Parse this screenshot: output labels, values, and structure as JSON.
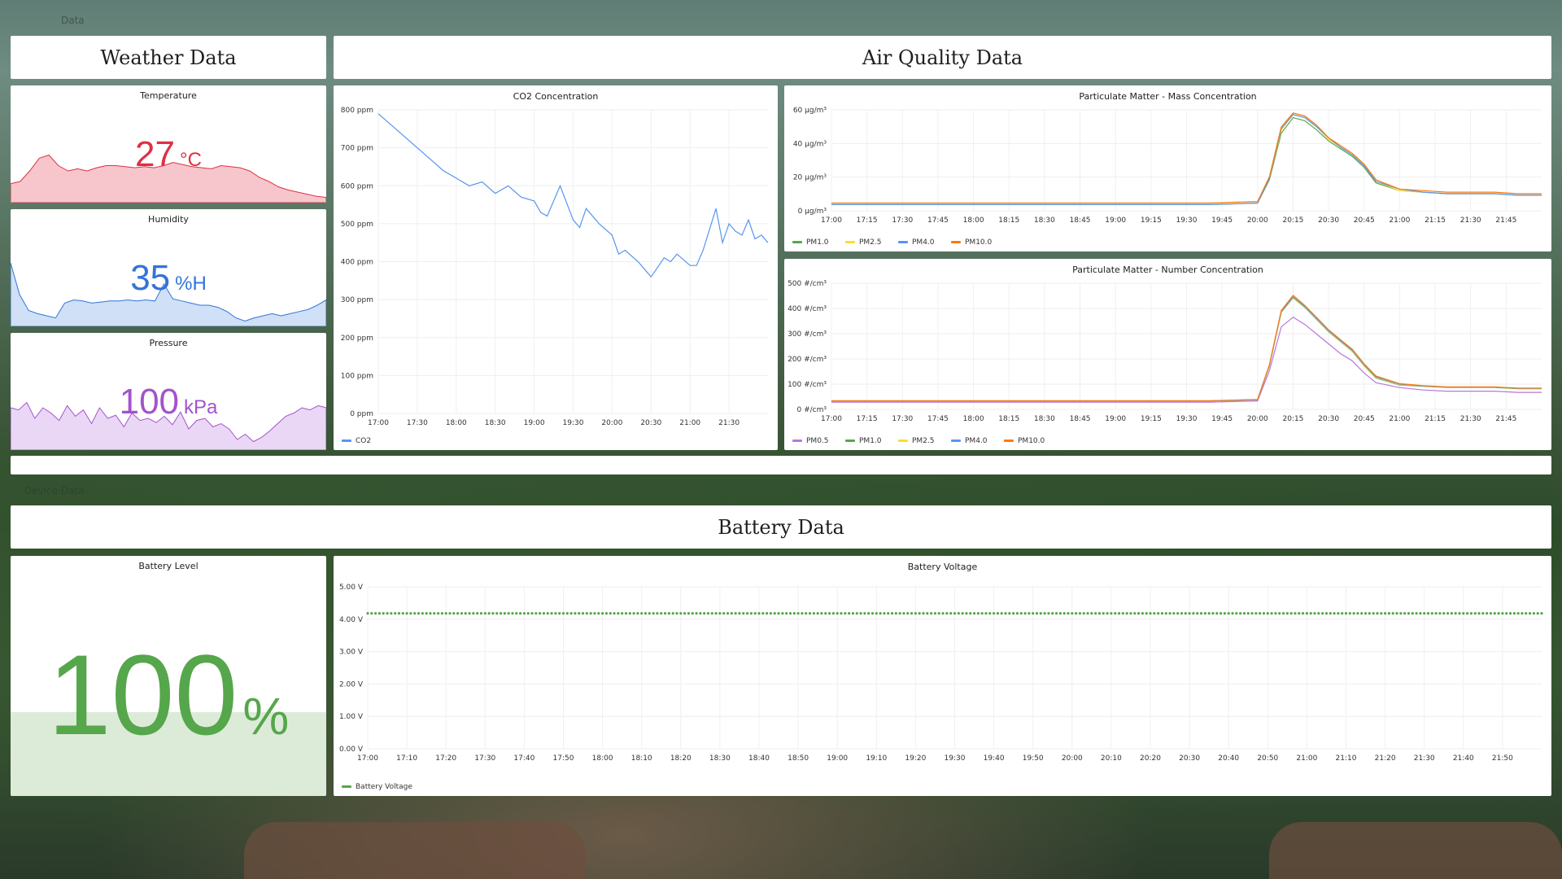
{
  "row_titles": {
    "top": "Data",
    "device": "Device Data"
  },
  "colors": {
    "temperature": "#e02f44",
    "temperature_fill": "#f7c6cd",
    "humidity": "#3274d9",
    "humidity_fill": "#cfe0f7",
    "pressure": "#a352cc",
    "pressure_fill": "#ead7f5",
    "co2": "#5794f2",
    "battery": "#56a64b",
    "battery_fill": "#dcebd8",
    "pm0_5": "#b877d9",
    "pm1_0": "#56a64b",
    "pm2_5": "#fade2a",
    "pm4_0": "#5794f2",
    "pm10_0": "#ff780a"
  },
  "weather": {
    "banner": "Weather Data",
    "temperature": {
      "title": "Temperature",
      "value": "27",
      "unit": "°C"
    },
    "humidity": {
      "title": "Humidity",
      "value": "35",
      "unit": "%H"
    },
    "pressure": {
      "title": "Pressure",
      "value": "100",
      "unit": "kPa"
    }
  },
  "air": {
    "banner": "Air Quality Data"
  },
  "battery": {
    "banner": "Battery Data",
    "level": {
      "title": "Battery Level",
      "value": "100",
      "unit": "%",
      "fill": 1.0
    }
  },
  "chart_data": [
    {
      "id": "co2",
      "type": "line",
      "title": "CO2 Concentration",
      "x_ticks": [
        "17:00",
        "17:30",
        "18:00",
        "18:30",
        "19:00",
        "19:30",
        "20:00",
        "20:30",
        "21:00",
        "21:30"
      ],
      "y_ticks": [
        "0 ppm",
        "100 ppm",
        "200 ppm",
        "300 ppm",
        "400 ppm",
        "500 ppm",
        "600 ppm",
        "700 ppm",
        "800 ppm"
      ],
      "ylim": [
        0,
        800
      ],
      "x_minutes_range": [
        0,
        300
      ],
      "series": [
        {
          "name": "CO2",
          "color_key": "co2",
          "x": [
            0,
            10,
            20,
            30,
            40,
            50,
            60,
            70,
            80,
            90,
            100,
            110,
            120,
            125,
            130,
            140,
            150,
            155,
            160,
            170,
            180,
            185,
            190,
            200,
            205,
            210,
            220,
            225,
            230,
            240,
            245,
            250,
            260,
            265,
            270,
            275,
            280,
            285,
            290,
            295,
            300
          ],
          "values": [
            790,
            760,
            730,
            700,
            670,
            640,
            620,
            600,
            610,
            580,
            600,
            570,
            560,
            530,
            520,
            600,
            510,
            490,
            540,
            500,
            470,
            420,
            430,
            400,
            380,
            360,
            410,
            400,
            420,
            390,
            390,
            430,
            540,
            450,
            500,
            480,
            470,
            510,
            460,
            470,
            450
          ]
        }
      ]
    },
    {
      "id": "pm_mass",
      "type": "line",
      "title": "Particulate Matter - Mass Concentration",
      "x_ticks": [
        "17:00",
        "17:15",
        "17:30",
        "17:45",
        "18:00",
        "18:15",
        "18:30",
        "18:45",
        "19:00",
        "19:15",
        "19:30",
        "19:45",
        "20:00",
        "20:15",
        "20:30",
        "20:45",
        "21:00",
        "21:15",
        "21:30",
        "21:45"
      ],
      "y_ticks": [
        "0 µg/m³",
        "20 µg/m³",
        "40 µg/m³",
        "60 µg/m³"
      ],
      "ylim": [
        0,
        65
      ],
      "x_minutes_range": [
        0,
        300
      ],
      "x": [
        0,
        40,
        80,
        120,
        160,
        180,
        185,
        190,
        195,
        200,
        205,
        210,
        215,
        220,
        225,
        230,
        240,
        250,
        260,
        270,
        280,
        290,
        300
      ],
      "series": [
        {
          "name": "PM1.0",
          "color_key": "pm1_0",
          "values": [
            4,
            4,
            4,
            4,
            4,
            5,
            20,
            50,
            60,
            58,
            52,
            45,
            40,
            35,
            28,
            18,
            13,
            12,
            11,
            11,
            11,
            10,
            10
          ]
        },
        {
          "name": "PM2.5",
          "color_key": "pm2_5",
          "values": [
            4,
            4,
            4,
            4,
            4,
            5,
            21,
            52,
            62,
            60,
            54,
            46,
            41,
            36,
            29,
            19,
            13,
            12,
            11,
            11,
            11,
            10,
            10
          ]
        },
        {
          "name": "PM4.0",
          "color_key": "pm4_0",
          "values": [
            4,
            4,
            4,
            4,
            4,
            5,
            21,
            53,
            62,
            60,
            54,
            47,
            41,
            36,
            29,
            19,
            14,
            12,
            11,
            11,
            11,
            10,
            10
          ]
        },
        {
          "name": "PM10.0",
          "color_key": "pm10_0",
          "values": [
            5,
            5,
            5,
            5,
            5,
            6,
            22,
            54,
            63,
            61,
            55,
            47,
            42,
            37,
            30,
            20,
            14,
            13,
            12,
            12,
            12,
            11,
            11
          ]
        }
      ]
    },
    {
      "id": "pm_number",
      "type": "line",
      "title": "Particulate Matter - Number Concentration",
      "x_ticks": [
        "17:00",
        "17:15",
        "17:30",
        "17:45",
        "18:00",
        "18:15",
        "18:30",
        "18:45",
        "19:00",
        "19:15",
        "19:30",
        "19:45",
        "20:00",
        "20:15",
        "20:30",
        "20:45",
        "21:00",
        "21:15",
        "21:30",
        "21:45"
      ],
      "y_ticks": [
        "0 #/cm³",
        "100 #/cm³",
        "200 #/cm³",
        "300 #/cm³",
        "400 #/cm³",
        "500 #/cm³"
      ],
      "ylim": [
        0,
        520
      ],
      "x_minutes_range": [
        0,
        300
      ],
      "x": [
        0,
        40,
        80,
        120,
        160,
        180,
        185,
        190,
        195,
        200,
        205,
        210,
        215,
        220,
        225,
        230,
        240,
        250,
        260,
        270,
        280,
        290,
        300
      ],
      "series": [
        {
          "name": "PM0.5",
          "color_key": "pm0_5",
          "values": [
            30,
            30,
            30,
            30,
            30,
            35,
            160,
            340,
            380,
            350,
            310,
            270,
            230,
            200,
            150,
            110,
            90,
            80,
            75,
            75,
            75,
            70,
            70
          ]
        },
        {
          "name": "PM1.0",
          "color_key": "pm1_0",
          "values": [
            35,
            35,
            35,
            35,
            35,
            40,
            180,
            400,
            460,
            420,
            370,
            320,
            280,
            240,
            180,
            130,
            100,
            95,
            90,
            90,
            90,
            85,
            85
          ]
        },
        {
          "name": "PM2.5",
          "color_key": "pm2_5",
          "values": [
            35,
            35,
            35,
            35,
            35,
            40,
            182,
            402,
            462,
            422,
            372,
            322,
            282,
            242,
            182,
            132,
            102,
            96,
            91,
            91,
            91,
            86,
            86
          ]
        },
        {
          "name": "PM4.0",
          "color_key": "pm4_0",
          "values": [
            35,
            35,
            35,
            35,
            35,
            40,
            183,
            404,
            464,
            424,
            374,
            324,
            284,
            244,
            184,
            134,
            104,
            97,
            92,
            92,
            92,
            87,
            87
          ]
        },
        {
          "name": "PM10.0",
          "color_key": "pm10_0",
          "values": [
            36,
            36,
            36,
            36,
            36,
            41,
            185,
            408,
            470,
            428,
            378,
            328,
            288,
            248,
            188,
            138,
            106,
            98,
            93,
            93,
            93,
            88,
            88
          ]
        }
      ]
    },
    {
      "id": "battery_voltage",
      "type": "scatter",
      "title": "Battery Voltage",
      "x_ticks": [
        "17:00",
        "17:10",
        "17:20",
        "17:30",
        "17:40",
        "17:50",
        "18:00",
        "18:10",
        "18:20",
        "18:30",
        "18:40",
        "18:50",
        "19:00",
        "19:10",
        "19:20",
        "19:30",
        "19:40",
        "19:50",
        "20:00",
        "20:10",
        "20:20",
        "20:30",
        "20:40",
        "20:50",
        "21:00",
        "21:10",
        "21:20",
        "21:30",
        "21:40",
        "21:50"
      ],
      "y_ticks": [
        "0.00 V",
        "1.00 V",
        "2.00 V",
        "3.00 V",
        "4.00 V",
        "5.00 V"
      ],
      "ylim": [
        0,
        5
      ],
      "x_minutes_range": [
        0,
        300
      ],
      "series": [
        {
          "name": "Battery Voltage",
          "color_key": "battery",
          "value": 4.18
        }
      ]
    }
  ],
  "sparklines": {
    "temperature": [
      18,
      20,
      30,
      42,
      45,
      35,
      30,
      32,
      30,
      33,
      35,
      35,
      34,
      33,
      34,
      33,
      35,
      38,
      36,
      34,
      33,
      32,
      35,
      34,
      33,
      30,
      24,
      20,
      15,
      12,
      10,
      8,
      6,
      5
    ],
    "humidity": [
      60,
      30,
      15,
      12,
      10,
      8,
      22,
      25,
      24,
      22,
      23,
      24,
      24,
      25,
      24,
      25,
      24,
      40,
      26,
      24,
      22,
      20,
      20,
      18,
      14,
      8,
      5,
      8,
      10,
      12,
      10,
      12,
      14,
      16,
      20,
      25
    ],
    "pressure": [
      40,
      38,
      45,
      30,
      40,
      35,
      28,
      42,
      32,
      38,
      25,
      40,
      30,
      33,
      22,
      35,
      28,
      30,
      26,
      32,
      24,
      36,
      20,
      28,
      30,
      22,
      25,
      20,
      10,
      15,
      8,
      12,
      18,
      25,
      32,
      35,
      40,
      38,
      42,
      40
    ]
  }
}
